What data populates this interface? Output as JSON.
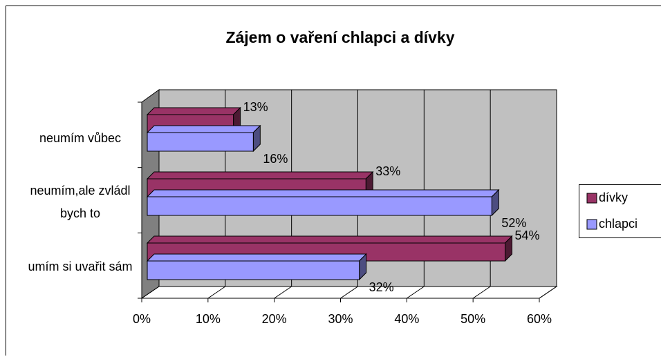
{
  "chart_data": {
    "type": "bar3d_horizontal",
    "title": "Zájem o vaření chlapci a dívky",
    "categories": [
      "neumím vůbec",
      "neumím,ale zvládl bych to",
      "umím si uvařit sám"
    ],
    "series": [
      {
        "name": "dívky",
        "color": "#993366",
        "values": [
          13,
          33,
          54
        ],
        "value_labels": [
          "13%",
          "33%",
          "54%"
        ]
      },
      {
        "name": "chlapci",
        "color": "#9999ff",
        "values": [
          16,
          52,
          32
        ],
        "value_labels": [
          "16%",
          "52%",
          "32%"
        ]
      }
    ],
    "xlim": [
      0,
      60
    ],
    "xticks": [
      {
        "value": 0,
        "label": "0%"
      },
      {
        "value": 10,
        "label": "10%"
      },
      {
        "value": 20,
        "label": "20%"
      },
      {
        "value": 30,
        "label": "30%"
      },
      {
        "value": 40,
        "label": "40%"
      },
      {
        "value": 50,
        "label": "50%"
      },
      {
        "value": 60,
        "label": "60%"
      }
    ],
    "grid": true,
    "legend": "right"
  }
}
